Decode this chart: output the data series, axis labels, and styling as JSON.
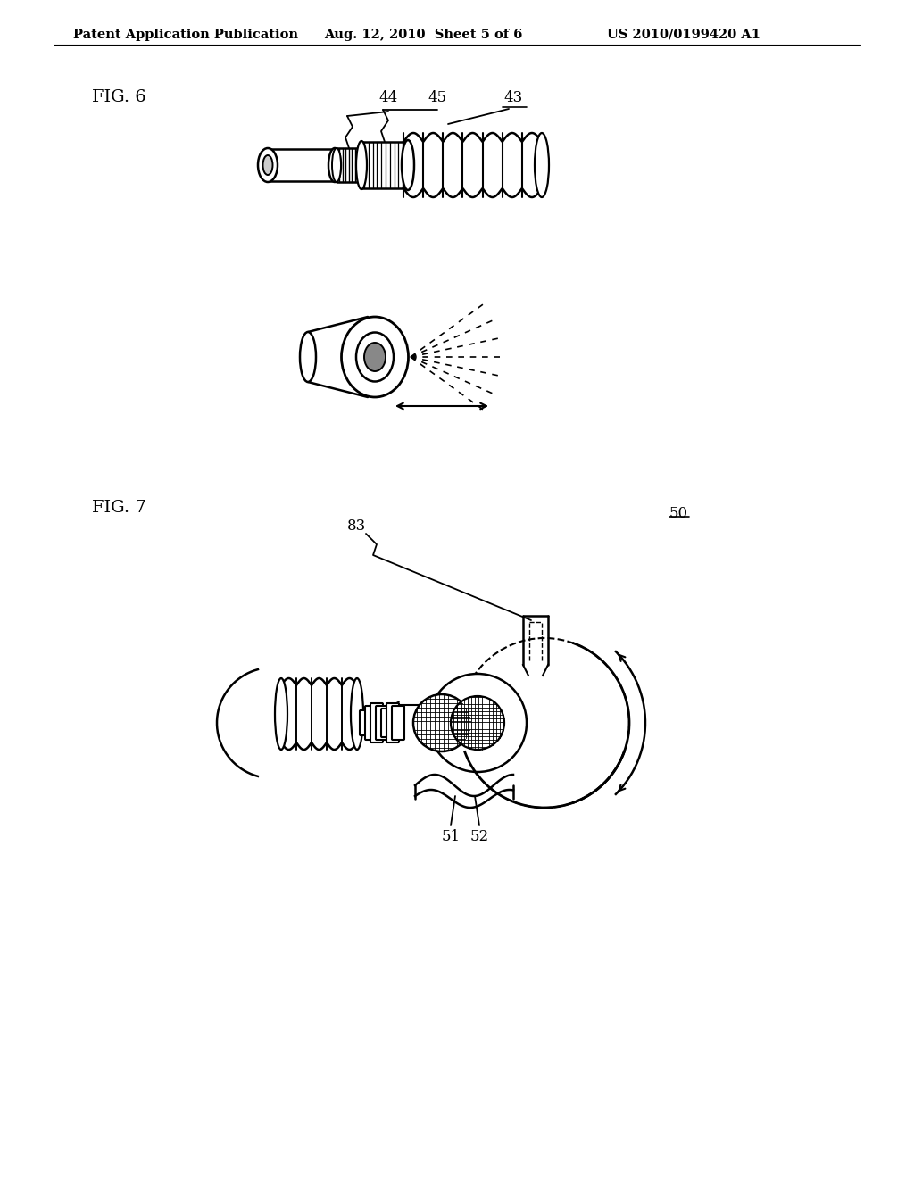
{
  "bg_color": "#ffffff",
  "header_left": "Patent Application Publication",
  "header_mid": "Aug. 12, 2010  Sheet 5 of 6",
  "header_right": "US 2010/0199420 A1",
  "fig6_label": "FIG. 6",
  "fig7_label": "FIG. 7",
  "label_44": "44",
  "label_45": "45",
  "label_43": "43",
  "label_83": "83",
  "label_50": "50",
  "label_51": "51",
  "label_52": "52",
  "line_color": "#000000",
  "text_color": "#000000",
  "header_fontsize": 10.5,
  "fig_label_fontsize": 14,
  "annot_fontsize": 12
}
